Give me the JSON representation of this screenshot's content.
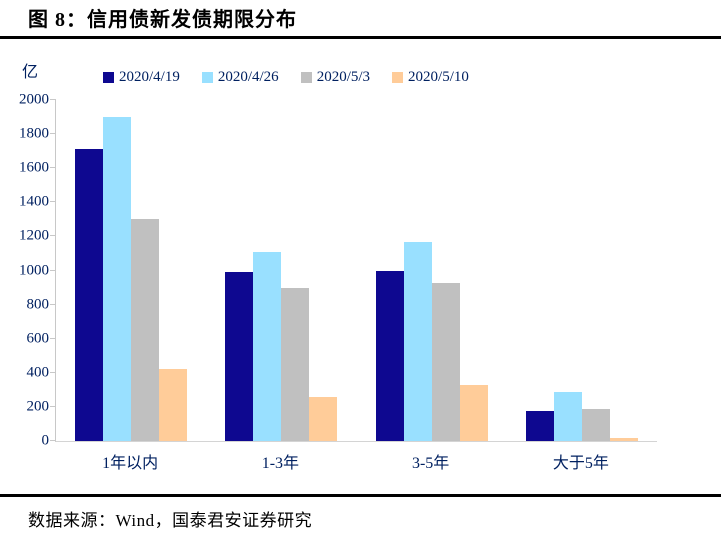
{
  "header": {
    "title": "图 8：信用债新发债期限分布"
  },
  "footer": {
    "source": "数据来源：Wind，国泰君安证券研究"
  },
  "chart_data": {
    "type": "bar",
    "title": "信用债新发债期限分布",
    "unit_label": "亿",
    "categories": [
      "1年以内",
      "1-3年",
      "3-5年",
      "大于5年"
    ],
    "series": [
      {
        "name": "2020/4/19",
        "color": "#0E0890",
        "values": [
          1710,
          990,
          1000,
          175
        ]
      },
      {
        "name": "2020/4/26",
        "color": "#99E0FF",
        "values": [
          1900,
          1110,
          1165,
          290
        ]
      },
      {
        "name": "2020/5/3",
        "color": "#C0C0C0",
        "values": [
          1300,
          895,
          925,
          190
        ]
      },
      {
        "name": "2020/5/10",
        "color": "#FFCC99",
        "values": [
          425,
          260,
          330,
          20
        ]
      }
    ],
    "ylim": [
      0,
      2000
    ],
    "ytick_step": 200,
    "legend_position": "top",
    "grid": false
  },
  "colors": {
    "axis_text": "#002060",
    "axis_line": "#C8C8C8",
    "rule": "#000000"
  }
}
